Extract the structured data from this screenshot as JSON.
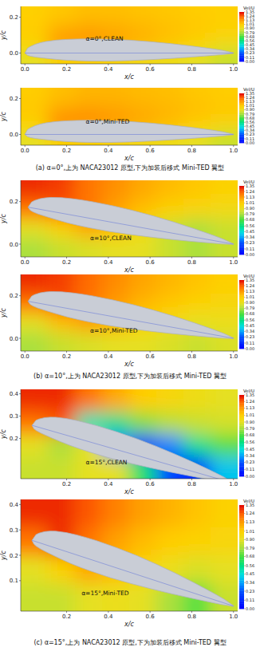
{
  "captions": [
    "(a) α=0°,上为 NACA23012 原型,下为加装后移式 Mini-TED 翼型",
    "(b) α=10°,上为 NACA23012 原型,下为加装后移式 Mini-TED 翼型",
    "(c) α=15°,上为 NACA23012 原型,下为加装后移式 Mini-TED 翼型"
  ],
  "airfoil": {
    "x": [
      0,
      0.0125,
      0.025,
      0.05,
      0.075,
      0.1,
      0.15,
      0.2,
      0.25,
      0.3,
      0.4,
      0.5,
      0.6,
      0.7,
      0.8,
      0.9,
      0.95,
      1.0
    ],
    "y_upper": [
      0,
      0.0267,
      0.0361,
      0.0491,
      0.058,
      0.0643,
      0.0719,
      0.076,
      0.078,
      0.0788,
      0.0769,
      0.072,
      0.0636,
      0.0526,
      0.0391,
      0.0235,
      0.0143,
      0.0013
    ],
    "y_lower": [
      0,
      -0.0123,
      -0.0171,
      -0.0226,
      -0.0261,
      -0.0292,
      -0.035,
      -0.0397,
      -0.0425,
      -0.0441,
      -0.0448,
      -0.0417,
      -0.0367,
      -0.03,
      -0.022,
      -0.013,
      -0.0083,
      -0.0013
    ]
  },
  "chart_data": [
    {
      "type": "contour",
      "annotation": "α=0°,CLEAN",
      "alpha": 0,
      "x_label": "x/c",
      "y_label": "y/c",
      "xlim": [
        -0.02,
        1.02
      ],
      "ylim": [
        -0.06,
        0.26
      ],
      "xticks": [
        {
          "value": 0,
          "label": "0.0"
        },
        {
          "value": 0.2,
          "label": "0.2"
        },
        {
          "value": 0.4,
          "label": "0.4"
        },
        {
          "value": 0.6,
          "label": "0.6"
        },
        {
          "value": 0.8,
          "label": "0.8"
        },
        {
          "value": 1,
          "label": "1.0"
        }
      ],
      "yticks": [
        {
          "value": 0,
          "label": "0.0"
        },
        {
          "value": 0.2,
          "label": "0.2"
        }
      ],
      "cells": [
        [
          1.01,
          1.03,
          1.05,
          1.05,
          1.04,
          1.03,
          1.02,
          1.01
        ],
        [
          1.02,
          1.08,
          1.1,
          1.09,
          1.07,
          1.05,
          1.03,
          1.01
        ],
        [
          1.0,
          1.15,
          1.15,
          1.12,
          1.08,
          1.04,
          1.0,
          0.95
        ],
        [
          0.9,
          1.0,
          1.0,
          0.98,
          0.95,
          0.93,
          0.9,
          0.85
        ]
      ],
      "colorbar": {
        "title": "Vel/U",
        "range": [
          0,
          1.35
        ],
        "ticks": [
          {
            "value": 0,
            "label": "0.00"
          },
          0.11,
          0.23,
          0.34,
          0.45,
          0.56,
          0.68,
          0.79,
          {
            "value": 0.9,
            "label": "0.90"
          },
          1.01,
          1.13,
          1.24,
          1.35
        ]
      }
    },
    {
      "type": "contour",
      "annotation": "α=0°,Mini-TED",
      "alpha": 0,
      "x_label": "x/c",
      "y_label": "y/c",
      "xlim": [
        -0.02,
        1.02
      ],
      "ylim": [
        -0.06,
        0.26
      ],
      "xticks": [
        {
          "value": 0,
          "label": "0.0"
        },
        {
          "value": 0.2,
          "label": "0.2"
        },
        {
          "value": 0.4,
          "label": "0.4"
        },
        {
          "value": 0.6,
          "label": "0.6"
        },
        {
          "value": 0.8,
          "label": "0.8"
        },
        {
          "value": 1,
          "label": "1.0"
        }
      ],
      "yticks": [
        {
          "value": 0,
          "label": "0.0"
        },
        {
          "value": 0.2,
          "label": "0.2"
        }
      ],
      "cells": [
        [
          1.02,
          1.05,
          1.07,
          1.07,
          1.06,
          1.05,
          1.03,
          1.02
        ],
        [
          1.03,
          1.1,
          1.12,
          1.11,
          1.09,
          1.07,
          1.05,
          1.03
        ],
        [
          1.0,
          1.18,
          1.17,
          1.14,
          1.1,
          1.06,
          1.02,
          0.98
        ],
        [
          0.9,
          1.0,
          1.0,
          0.98,
          0.95,
          0.93,
          0.9,
          0.85
        ]
      ],
      "colorbar": {
        "title": "Vel/U",
        "range": [
          0,
          1.35
        ],
        "ticks": [
          {
            "value": 0,
            "label": "0.00"
          },
          0.11,
          0.23,
          0.34,
          0.45,
          0.56,
          0.68,
          0.79,
          {
            "value": 0.9,
            "label": "0.90"
          },
          1.01,
          1.13,
          1.24,
          1.35
        ]
      }
    },
    {
      "type": "contour",
      "annotation": "α=10°,CLEAN",
      "alpha": 10,
      "x_label": "x/c",
      "y_label": "y/c",
      "xlim": [
        -0.02,
        1.02
      ],
      "ylim": [
        -0.06,
        0.3
      ],
      "xticks": [
        {
          "value": 0,
          "label": "0.0"
        },
        {
          "value": 0.2,
          "label": "0.2"
        },
        {
          "value": 0.4,
          "label": "0.4"
        },
        {
          "value": 0.6,
          "label": "0.6"
        },
        {
          "value": 0.8,
          "label": "0.8"
        },
        {
          "value": 1,
          "label": "1.0"
        }
      ],
      "yticks": [
        {
          "value": 0,
          "label": "0.0"
        },
        {
          "value": 0.2,
          "label": "0.2"
        }
      ],
      "cells": [
        [
          1.3,
          1.28,
          1.2,
          1.15,
          1.1,
          1.06,
          1.03,
          1.0
        ],
        [
          1.2,
          1.25,
          1.2,
          1.12,
          1.05,
          1.0,
          0.98,
          0.95
        ],
        [
          0.9,
          1.0,
          1.1,
          1.05,
          0.95,
          0.85,
          0.8,
          0.85
        ],
        [
          0.8,
          0.85,
          0.88,
          0.9,
          0.9,
          0.85,
          0.8,
          0.85
        ]
      ],
      "colorbar": {
        "title": "Vel/U",
        "range": [
          0,
          1.35
        ],
        "ticks": [
          {
            "value": 0,
            "label": "0.00"
          },
          0.11,
          0.23,
          0.34,
          0.45,
          0.56,
          0.68,
          0.79,
          {
            "value": 0.9,
            "label": "0.90"
          },
          1.01,
          1.13,
          1.24,
          1.35
        ]
      }
    },
    {
      "type": "contour",
      "annotation": "α=10°,Mini-TED",
      "alpha": 10,
      "x_label": "x/c",
      "y_label": "y/c",
      "xlim": [
        -0.02,
        1.02
      ],
      "ylim": [
        -0.06,
        0.3
      ],
      "xticks": [
        {
          "value": 0,
          "label": "0.0"
        },
        {
          "value": 0.2,
          "label": "0.2"
        },
        {
          "value": 0.4,
          "label": "0.4"
        },
        {
          "value": 0.6,
          "label": "0.6"
        },
        {
          "value": 0.8,
          "label": "0.8"
        },
        {
          "value": 1,
          "label": "1.0"
        }
      ],
      "yticks": [
        {
          "value": 0,
          "label": "0.0"
        },
        {
          "value": 0.2,
          "label": "0.2"
        }
      ],
      "cells": [
        [
          1.3,
          1.28,
          1.22,
          1.16,
          1.11,
          1.07,
          1.04,
          1.01
        ],
        [
          1.2,
          1.26,
          1.2,
          1.13,
          1.07,
          1.03,
          1.0,
          0.97
        ],
        [
          0.9,
          1.05,
          1.12,
          1.08,
          1.0,
          0.95,
          0.9,
          0.92
        ],
        [
          0.8,
          0.85,
          0.88,
          0.9,
          0.9,
          0.88,
          0.85,
          0.88
        ]
      ],
      "colorbar": {
        "title": "Vel/U",
        "range": [
          0,
          1.35
        ],
        "ticks": [
          {
            "value": 0,
            "label": "0.00"
          },
          0.11,
          0.23,
          0.34,
          0.45,
          0.56,
          0.68,
          0.79,
          {
            "value": 0.9,
            "label": "0.90"
          },
          1.01,
          1.13,
          1.24,
          1.35
        ]
      }
    },
    {
      "type": "contour",
      "annotation": "α=15°,CLEAN",
      "alpha": 15,
      "x_label": "x/c",
      "y_label": "y/c",
      "xlim": [
        -0.02,
        1.02
      ],
      "ylim": [
        0.02,
        0.42
      ],
      "xticks": [
        {
          "value": 0.2,
          "label": "0.2"
        },
        {
          "value": 0.4,
          "label": "0.4"
        },
        {
          "value": 0.6,
          "label": "0.6"
        },
        {
          "value": 0.8,
          "label": "0.8"
        },
        {
          "value": 1,
          "label": "1.0"
        }
      ],
      "yticks": [
        {
          "value": 0.2,
          "label": "0.2"
        },
        {
          "value": 0.3,
          "label": "0.3"
        },
        {
          "value": 0.4,
          "label": "0.4"
        }
      ],
      "cells": [
        [
          1.3,
          1.3,
          1.2,
          1.1,
          1.02,
          0.97,
          0.93,
          0.9
        ],
        [
          1.2,
          1.25,
          0.5,
          0.55,
          0.75,
          0.82,
          0.85,
          0.87
        ],
        [
          0.9,
          0.8,
          0.9,
          0.3,
          0.1,
          0.3,
          0.55,
          0.7
        ],
        [
          0.85,
          0.85,
          0.9,
          0.9,
          0.6,
          0.2,
          0.1,
          0.4
        ]
      ],
      "colorbar": {
        "title": "Vel/U",
        "range": [
          0,
          1.35
        ],
        "ticks": [
          {
            "value": 0,
            "label": "0.00"
          },
          0.11,
          0.23,
          0.34,
          0.45,
          0.56,
          0.68,
          0.79,
          {
            "value": 0.9,
            "label": "0.90"
          },
          1.01,
          1.13,
          1.24,
          1.35
        ]
      }
    },
    {
      "type": "contour",
      "annotation": "α=15°,Mini-TED",
      "alpha": 15,
      "x_label": "x/c",
      "y_label": "y/c",
      "xlim": [
        -0.02,
        1.02
      ],
      "ylim": [
        -0.02,
        0.42
      ],
      "xticks": [
        {
          "value": 0.2,
          "label": "0.2"
        },
        {
          "value": 0.4,
          "label": "0.4"
        },
        {
          "value": 0.6,
          "label": "0.6"
        },
        {
          "value": 0.8,
          "label": "0.8"
        },
        {
          "value": 1,
          "label": "1.0"
        }
      ],
      "yticks": [
        {
          "value": 0.1,
          "label": "0.1"
        },
        {
          "value": 0.2,
          "label": "0.2"
        },
        {
          "value": 0.3,
          "label": "0.3"
        },
        {
          "value": 0.4,
          "label": "0.4"
        }
      ],
      "cells": [
        [
          1.3,
          1.3,
          1.25,
          1.18,
          1.12,
          1.08,
          1.04,
          1.0
        ],
        [
          1.2,
          1.3,
          1.2,
          1.12,
          1.06,
          1.02,
          1.0,
          0.98
        ],
        [
          0.9,
          1.0,
          1.1,
          1.05,
          0.98,
          0.92,
          0.88,
          0.9
        ],
        [
          0.85,
          0.85,
          0.9,
          0.92,
          0.9,
          0.8,
          0.7,
          0.85
        ]
      ],
      "colorbar": {
        "title": "Vel/U",
        "range": [
          0,
          1.35
        ],
        "ticks": [
          {
            "value": 0,
            "label": "0.00"
          },
          0.11,
          0.23,
          0.34,
          0.45,
          0.56,
          0.68,
          0.79,
          {
            "value": 0.9,
            "label": "0.90"
          },
          1.01,
          1.13,
          1.24,
          1.35
        ]
      }
    }
  ]
}
